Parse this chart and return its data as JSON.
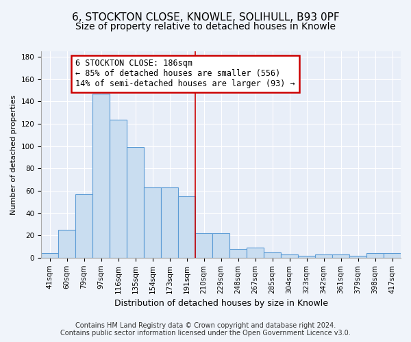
{
  "title1": "6, STOCKTON CLOSE, KNOWLE, SOLIHULL, B93 0PF",
  "title2": "Size of property relative to detached houses in Knowle",
  "xlabel": "Distribution of detached houses by size in Knowle",
  "ylabel": "Number of detached properties",
  "bar_labels": [
    "41sqm",
    "60sqm",
    "79sqm",
    "97sqm",
    "116sqm",
    "135sqm",
    "154sqm",
    "173sqm",
    "191sqm",
    "210sqm",
    "229sqm",
    "248sqm",
    "267sqm",
    "285sqm",
    "304sqm",
    "323sqm",
    "342sqm",
    "361sqm",
    "379sqm",
    "398sqm",
    "417sqm"
  ],
  "bar_values": [
    4,
    25,
    57,
    147,
    124,
    99,
    63,
    63,
    55,
    22,
    22,
    8,
    9,
    5,
    3,
    2,
    3,
    3,
    2,
    4,
    4
  ],
  "bar_color": "#c9ddf0",
  "bar_edge_color": "#5b9bd5",
  "property_line_x": 8.5,
  "property_line_color": "#cc0000",
  "annotation_line1": "6 STOCKTON CLOSE: 186sqm",
  "annotation_line2": "← 85% of detached houses are smaller (556)",
  "annotation_line3": "14% of semi-detached houses are larger (93) →",
  "annotation_box_color": "#ffffff",
  "annotation_edge_color": "#cc0000",
  "ylim": [
    0,
    185
  ],
  "yticks": [
    0,
    20,
    40,
    60,
    80,
    100,
    120,
    140,
    160,
    180
  ],
  "footer1": "Contains HM Land Registry data © Crown copyright and database right 2024.",
  "footer2": "Contains public sector information licensed under the Open Government Licence v3.0.",
  "bg_color": "#f0f4fa",
  "plot_bg_color": "#e8eef8",
  "grid_color": "#ffffff",
  "title1_fontsize": 11,
  "title2_fontsize": 10,
  "xlabel_fontsize": 9,
  "ylabel_fontsize": 8,
  "tick_fontsize": 7.5,
  "annotation_fontsize": 8.5,
  "footer_fontsize": 7
}
